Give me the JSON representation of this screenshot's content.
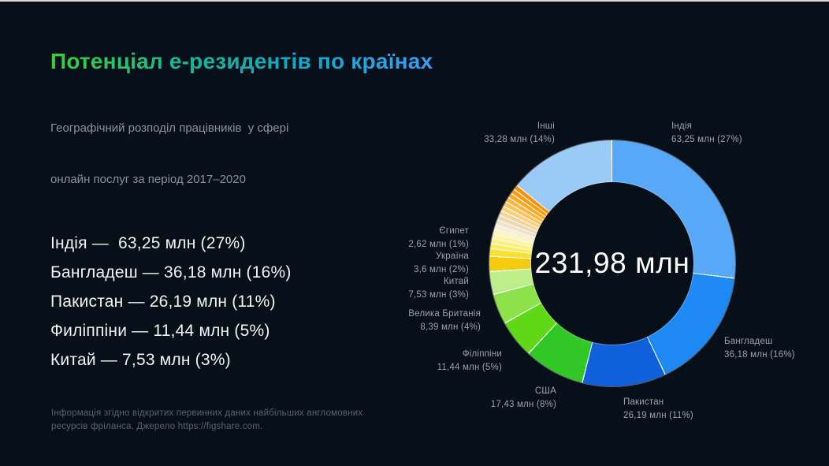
{
  "page": {
    "background": "#071019",
    "top_border": "#d8d8d8"
  },
  "header": {
    "title": "Потенціал е-резидентів по країнах",
    "title_gradient": [
      "#3bd03b",
      "#17b993",
      "#0fa9cc",
      "#3b9df5"
    ],
    "subtitle_line1": "Географічний розподіл працівників  у сфері",
    "subtitle_line2": "онлайн послуг за період 2017–2020"
  },
  "summary_list": {
    "items": [
      "Індія —  63,25 млн (27%)",
      "Бангладеш — 36,18 млн (16%)",
      "Пакистан — 26,19 млн (11%)",
      "Филіппіни — 11,44 млн (5%)",
      "Китай — 7,53 млн (3%)"
    ]
  },
  "footer": {
    "line1": "Інформація згідно відкритих первинних даних найбільших англомовних",
    "line2": "ресурсів фріланса. Джерело https://figshare.com."
  },
  "chart_data": {
    "type": "pie",
    "subtype": "donut",
    "title": "Потенціал е-резидентів по країнах",
    "center_label": "231,98 млн",
    "total": 231.98,
    "unit": "млн",
    "start_angle": "12 o'clock, clockwise",
    "legend_position": "around",
    "separator_color": "#f2f5f8",
    "slices": [
      {
        "name": "Індія",
        "value": 63.25,
        "pct": 27,
        "label": "63,25 млн (27%)",
        "color": "#57a8f6"
      },
      {
        "name": "Бангладеш",
        "value": 36.18,
        "pct": 16,
        "label": "36,18 млн (16%)",
        "color": "#1e88f3"
      },
      {
        "name": "Пакистан",
        "value": 26.19,
        "pct": 11,
        "label": "26,19 млн (11%)",
        "color": "#1061d9"
      },
      {
        "name": "США",
        "value": 17.43,
        "pct": 8,
        "label": "17,43 млн (8%)",
        "color": "#31c826"
      },
      {
        "name": "Філіппіни",
        "value": 11.44,
        "pct": 5,
        "label": "11,44 млн (5%)",
        "color": "#60d816"
      },
      {
        "name": "Велика Британія",
        "value": 8.39,
        "pct": 4,
        "label": "8,39 млн (4%)",
        "color": "#8de24b"
      },
      {
        "name": "Китай",
        "value": 7.53,
        "pct": 3,
        "label": "7,53 млн (3%)",
        "color": "#bcee8a"
      },
      {
        "name": "Україна",
        "value": 3.6,
        "pct": 2,
        "label": "3,6 млн (2%)",
        "color": "#f3cb10"
      },
      {
        "name": "Єгипет",
        "value": 2.62,
        "pct": 1,
        "label": "2,62 млн (1%)",
        "color": "#f7e232"
      },
      {
        "name": "Інші",
        "value": 33.28,
        "pct": 14,
        "label": "33,28 млн (14%)",
        "color": "#9ccaf6"
      }
    ],
    "micro_segments": {
      "total_pct": 9,
      "colors": [
        "#fbee55",
        "#fdf277",
        "#fef59c",
        "#fdf5bd",
        "#f9efd2",
        "#f1e2c4",
        "#ecd9b3",
        "#f4d595",
        "#fed07c",
        "#ffc55c",
        "#ffb73c",
        "#ffa81e",
        "#ff9b08",
        "#ff9000"
      ]
    }
  }
}
